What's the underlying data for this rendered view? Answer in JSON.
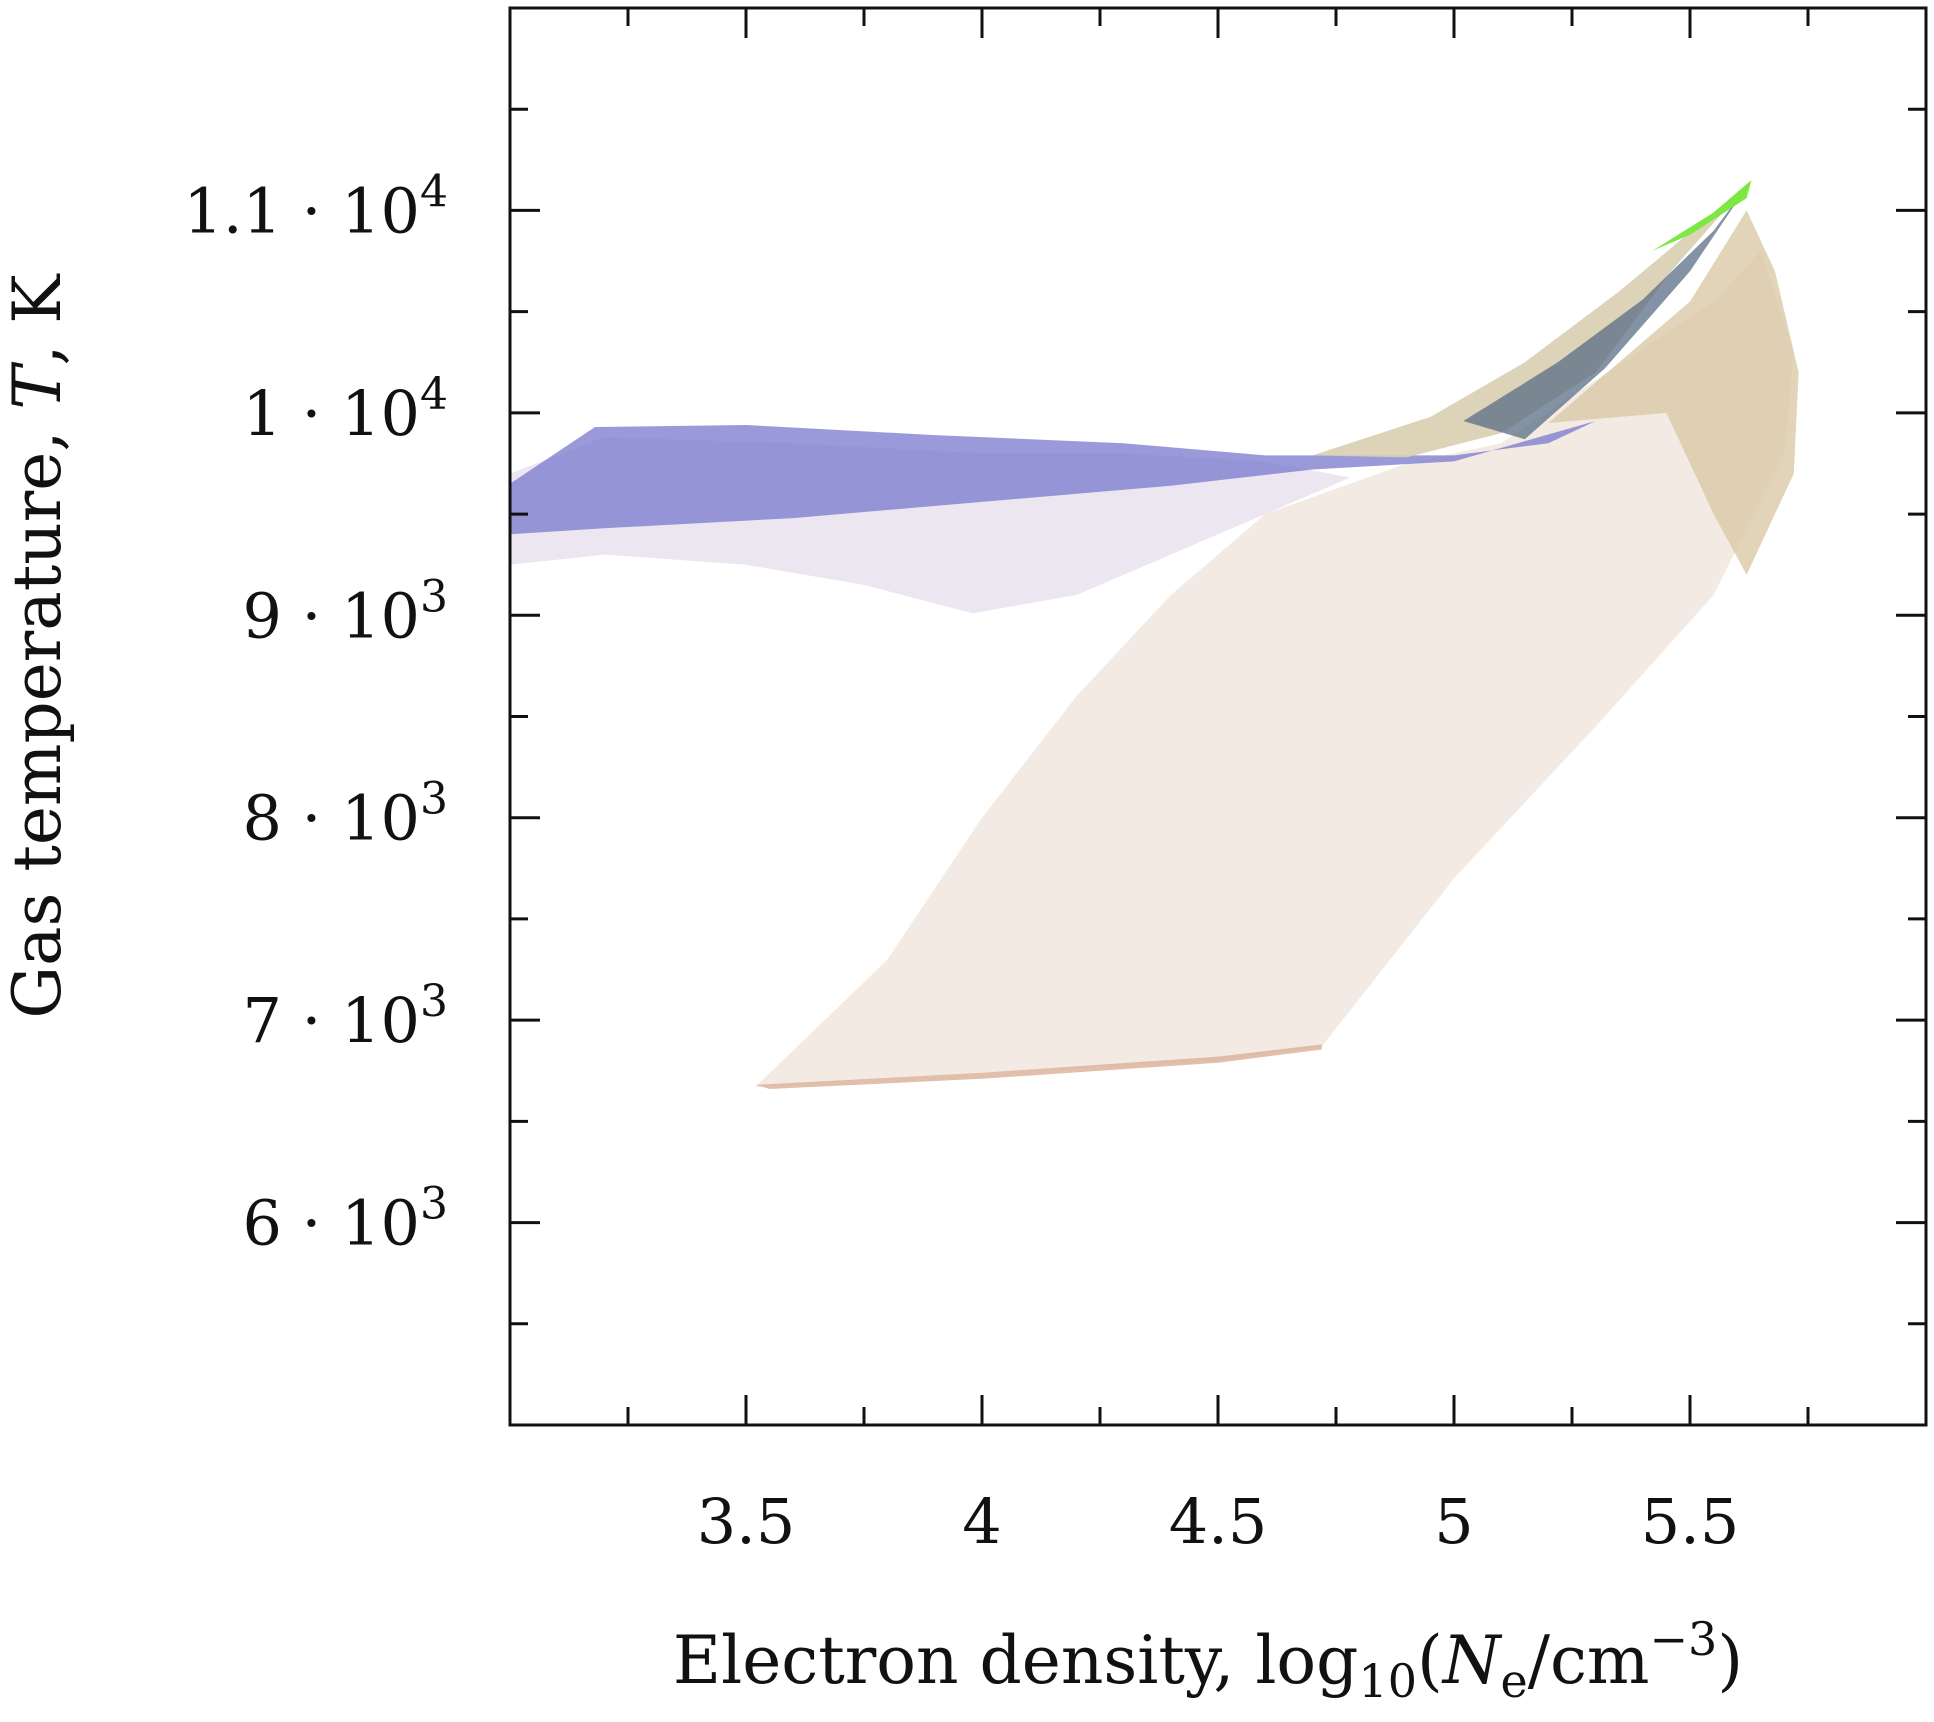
{
  "chart_data": {
    "type": "area",
    "title": "",
    "xlabel": {
      "main": "Electron density, log",
      "sub": "10",
      "open": "(",
      "var": "N",
      "var_sub": "e",
      "unit": "/cm",
      "unit_sup": "−3",
      "close": ")"
    },
    "ylabel": {
      "prefix": "Gas temperature, ",
      "var": "T",
      "suffix": ", K"
    },
    "xlim": [
      3.0,
      6.0
    ],
    "ylim": [
      5000,
      12000
    ],
    "x_ticks": [
      {
        "value": 3.5,
        "label": "3.5"
      },
      {
        "value": 4.0,
        "label": "4"
      },
      {
        "value": 4.5,
        "label": "4.5"
      },
      {
        "value": 5.0,
        "label": "5"
      },
      {
        "value": 5.5,
        "label": "5.5"
      }
    ],
    "x_minor_ticks": [
      3.25,
      3.75,
      4.25,
      4.75,
      5.25,
      5.75
    ],
    "y_ticks": [
      {
        "value": 6000,
        "mant": "6 · 10",
        "exp": "3"
      },
      {
        "value": 7000,
        "mant": "7 · 10",
        "exp": "3"
      },
      {
        "value": 8000,
        "mant": "8 · 10",
        "exp": "3"
      },
      {
        "value": 9000,
        "mant": "9 · 10",
        "exp": "3"
      },
      {
        "value": 10000,
        "mant": "1 · 10",
        "exp": "4"
      },
      {
        "value": 11000,
        "mant": "1.1 · 10",
        "exp": "4"
      }
    ],
    "y_minor_ticks": [
      5500,
      6500,
      7500,
      8500,
      9500,
      10500,
      11500
    ],
    "grid": false,
    "legend": "none",
    "regions": [
      {
        "name": "",
        "color": "#e8d9cc",
        "opacity": 0.55,
        "points": [
          [
            3.52,
            6670
          ],
          [
            4.0,
            6740
          ],
          [
            4.5,
            6800
          ],
          [
            4.72,
            6870
          ],
          [
            5.0,
            7700
          ],
          [
            5.3,
            8450
          ],
          [
            5.55,
            9100
          ],
          [
            5.7,
            9800
          ],
          [
            5.72,
            10300
          ],
          [
            5.65,
            10800
          ],
          [
            5.55,
            10550
          ],
          [
            5.1,
            9850
          ],
          [
            4.9,
            9750
          ],
          [
            4.6,
            9500
          ],
          [
            4.4,
            9100
          ],
          [
            4.2,
            8600
          ],
          [
            4.0,
            8000
          ],
          [
            3.8,
            7300
          ]
        ]
      },
      {
        "name": "",
        "color": "#d9c9a6",
        "opacity": 0.8,
        "points": [
          [
            5.2,
            9950
          ],
          [
            5.5,
            10550
          ],
          [
            5.62,
            11000
          ],
          [
            5.68,
            10700
          ],
          [
            5.73,
            10200
          ],
          [
            5.72,
            9700
          ],
          [
            5.62,
            9200
          ],
          [
            5.55,
            9500
          ],
          [
            5.45,
            10000
          ]
        ]
      },
      {
        "name": "",
        "color": "#e9e3ee",
        "opacity": 0.9,
        "points": [
          [
            3.0,
            9250
          ],
          [
            3.2,
            9300
          ],
          [
            3.5,
            9250
          ],
          [
            3.75,
            9150
          ],
          [
            3.98,
            9010
          ],
          [
            4.2,
            9100
          ],
          [
            4.5,
            9400
          ],
          [
            4.78,
            9680
          ],
          [
            4.6,
            9760
          ],
          [
            4.3,
            9800
          ],
          [
            4.0,
            9800
          ],
          [
            3.6,
            9850
          ],
          [
            3.2,
            9880
          ],
          [
            3.0,
            9700
          ]
        ]
      },
      {
        "name": "",
        "color": "#7878cf",
        "opacity": 0.75,
        "points": [
          [
            3.0,
            9650
          ],
          [
            3.18,
            9930
          ],
          [
            3.5,
            9940
          ],
          [
            3.9,
            9890
          ],
          [
            4.3,
            9850
          ],
          [
            4.6,
            9790
          ],
          [
            5.0,
            9790
          ],
          [
            5.2,
            9850
          ],
          [
            5.3,
            9960
          ],
          [
            5.0,
            9760
          ],
          [
            4.7,
            9720
          ],
          [
            4.4,
            9640
          ],
          [
            4.0,
            9560
          ],
          [
            3.6,
            9480
          ],
          [
            3.2,
            9430
          ],
          [
            3.0,
            9400
          ]
        ]
      },
      {
        "name": "",
        "color": "#d8ceb0",
        "opacity": 0.9,
        "points": [
          [
            4.7,
            9790
          ],
          [
            4.95,
            9980
          ],
          [
            5.15,
            10250
          ],
          [
            5.35,
            10600
          ],
          [
            5.55,
            10990
          ],
          [
            5.63,
            11150
          ],
          [
            5.46,
            10700
          ],
          [
            5.3,
            10200
          ],
          [
            5.1,
            9900
          ],
          [
            4.9,
            9780
          ]
        ]
      },
      {
        "name": "",
        "color": "#5a6d86",
        "opacity": 0.75,
        "points": [
          [
            5.02,
            9960
          ],
          [
            5.22,
            10250
          ],
          [
            5.4,
            10560
          ],
          [
            5.55,
            10900
          ],
          [
            5.63,
            11150
          ],
          [
            5.5,
            10700
          ],
          [
            5.32,
            10220
          ],
          [
            5.15,
            9870
          ]
        ]
      },
      {
        "name": "",
        "color": "#78e83a",
        "opacity": 0.95,
        "points": [
          [
            5.42,
            10800
          ],
          [
            5.55,
            10990
          ],
          [
            5.63,
            11150
          ],
          [
            5.62,
            11060
          ],
          [
            5.5,
            10880
          ]
        ]
      },
      {
        "name": "",
        "color": "#dcb49c",
        "opacity": 0.85,
        "points": [
          [
            3.52,
            6680
          ],
          [
            4.0,
            6740
          ],
          [
            4.5,
            6820
          ],
          [
            4.72,
            6880
          ],
          [
            4.72,
            6855
          ],
          [
            4.5,
            6790
          ],
          [
            4.0,
            6710
          ],
          [
            3.55,
            6660
          ]
        ]
      }
    ]
  }
}
